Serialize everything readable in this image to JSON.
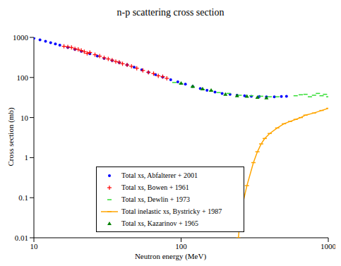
{
  "chart_data": {
    "type": "scatter",
    "title": "n-p scattering cross section",
    "x_label": "Neutron energy (MeV)",
    "y_label": "Cross section (mb)",
    "log": true,
    "grid": false,
    "legend": "lower center",
    "xlim": [
      10,
      1000
    ],
    "xticks": [
      10,
      100,
      1000
    ],
    "ylim": [
      0.01,
      1000
    ],
    "yticks": [
      0.01,
      0.1,
      1,
      10,
      100,
      1000
    ],
    "series": [
      {
        "name": "Total xs, Abfalterer + 2001",
        "color": "#0000ff",
        "marker": "circle",
        "x": [
          10,
          11,
          12,
          13,
          14,
          15,
          17,
          19,
          21,
          24,
          27,
          30,
          34,
          38,
          43,
          48,
          54,
          60,
          67,
          75,
          85,
          95,
          107,
          120,
          135,
          150,
          170,
          190,
          215,
          240,
          270,
          300,
          340,
          380,
          430,
          480,
          520
        ],
        "values": [
          950,
          870,
          800,
          740,
          690,
          640,
          560,
          500,
          450,
          390,
          340,
          300,
          265,
          235,
          205,
          180,
          155,
          135,
          118,
          102,
          88,
          78,
          68,
          60,
          53,
          48,
          43,
          40,
          38,
          36,
          35,
          34,
          33.5,
          33,
          33,
          33.5,
          34
        ]
      },
      {
        "name": "Total xs, Bowen + 1961",
        "color": "#ff0000",
        "marker": "plus",
        "x": [
          16,
          17,
          18,
          19,
          20,
          21,
          22,
          23,
          24,
          26,
          28,
          30,
          32,
          34,
          36,
          38,
          40,
          43,
          46,
          50,
          55,
          60,
          65,
          70,
          75,
          80
        ],
        "values": [
          600,
          580,
          560,
          520,
          500,
          470,
          440,
          400,
          420,
          370,
          340,
          310,
          290,
          270,
          250,
          240,
          220,
          205,
          190,
          170,
          150,
          135,
          125,
          110,
          105,
          95
        ]
      },
      {
        "name": "Total xs, Dewlin + 1973",
        "color": "#33dd33",
        "marker": "dash",
        "x": [
          90,
          100,
          120,
          140,
          160,
          180,
          210,
          250,
          300,
          350,
          400,
          450,
          600,
          650,
          700,
          750,
          800,
          850,
          900,
          950,
          1000
        ],
        "values": [
          75,
          70,
          58,
          50,
          46,
          42,
          40,
          36,
          35,
          34,
          33,
          33,
          35,
          37,
          38,
          33,
          36,
          40,
          35,
          38,
          33
        ]
      },
      {
        "name": "Total inelastic xs,  Bystricky + 1987",
        "color": "#ffa500",
        "type": "line",
        "marker": "dash",
        "line_style": "solid",
        "x": [
          245,
          255,
          280,
          310,
          330,
          350,
          370,
          400,
          450,
          500,
          550,
          600,
          650,
          700,
          800,
          900,
          1000
        ],
        "values": [
          0.01,
          0.045,
          0.2,
          0.75,
          1.4,
          2.2,
          3,
          4,
          5.5,
          7,
          8,
          9,
          10,
          11.5,
          13,
          15,
          17
        ]
      },
      {
        "name": "Total xs, Kazarinov + 1965",
        "color": "#008000",
        "marker": "triangle",
        "x": [
          100,
          120,
          140,
          160,
          200,
          240,
          280,
          330,
          380
        ],
        "values": [
          72,
          60,
          52,
          48,
          38,
          35,
          34,
          32,
          31
        ]
      }
    ]
  }
}
